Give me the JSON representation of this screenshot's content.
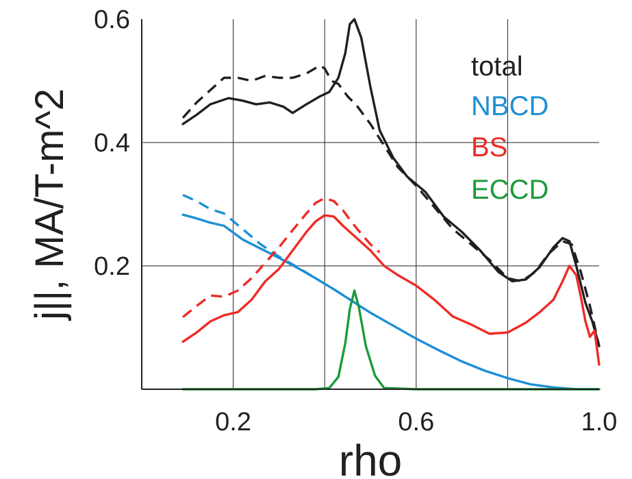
{
  "chart_data": {
    "type": "line",
    "title": "",
    "xlabel": "rho",
    "ylabel": "j||, MA/T-m^2",
    "xlim": [
      0.0,
      1.0
    ],
    "ylim": [
      0.0,
      0.6
    ],
    "xticks": [
      0.2,
      0.6,
      1.0
    ],
    "xtick_labels": [
      "0.2",
      "0.6",
      "1.0"
    ],
    "yticks": [
      0.2,
      0.4,
      0.6
    ],
    "ytick_labels": [
      "0.2",
      "0.4",
      "0.6"
    ],
    "x_gridlines": [
      0.2,
      0.4,
      0.6,
      0.8
    ],
    "y_gridlines": [
      0.2,
      0.4
    ],
    "grid": true,
    "legend_position": "top-right",
    "legend": [
      {
        "label": "total",
        "color": "#231f20"
      },
      {
        "label": "NBCD",
        "color": "#1e8fd5"
      },
      {
        "label": "BS",
        "color": "#ee2a24"
      },
      {
        "label": "ECCD",
        "color": "#1c9a3b"
      }
    ],
    "series": [
      {
        "name": "total",
        "color": "#231f20",
        "style": "solid",
        "x": [
          0.09,
          0.12,
          0.15,
          0.19,
          0.22,
          0.25,
          0.28,
          0.31,
          0.33,
          0.36,
          0.39,
          0.41,
          0.43,
          0.445,
          0.455,
          0.465,
          0.48,
          0.5,
          0.52,
          0.55,
          0.58,
          0.62,
          0.66,
          0.7,
          0.74,
          0.78,
          0.81,
          0.84,
          0.87,
          0.9,
          0.92,
          0.935,
          0.95,
          0.97,
          0.985,
          1.0
        ],
        "y": [
          0.43,
          0.445,
          0.462,
          0.472,
          0.468,
          0.462,
          0.465,
          0.458,
          0.448,
          0.462,
          0.475,
          0.482,
          0.505,
          0.545,
          0.592,
          0.6,
          0.57,
          0.49,
          0.42,
          0.375,
          0.345,
          0.32,
          0.28,
          0.255,
          0.225,
          0.19,
          0.175,
          0.178,
          0.198,
          0.23,
          0.245,
          0.24,
          0.2,
          0.14,
          0.11,
          0.07
        ]
      },
      {
        "name": "total (dashed)",
        "color": "#231f20",
        "style": "dashed",
        "x": [
          0.09,
          0.12,
          0.15,
          0.18,
          0.21,
          0.24,
          0.27,
          0.3,
          0.33,
          0.36,
          0.39,
          0.4,
          0.415,
          0.43,
          0.45,
          0.47,
          0.5,
          0.53,
          0.56,
          0.6,
          0.64,
          0.68,
          0.72,
          0.76,
          0.8,
          0.83,
          0.86,
          0.89,
          0.92,
          0.94,
          0.96,
          0.98,
          1.0
        ],
        "y": [
          0.44,
          0.465,
          0.485,
          0.505,
          0.505,
          0.5,
          0.508,
          0.505,
          0.505,
          0.512,
          0.525,
          0.52,
          0.5,
          0.495,
          0.475,
          0.46,
          0.43,
          0.395,
          0.36,
          0.33,
          0.295,
          0.26,
          0.235,
          0.21,
          0.18,
          0.175,
          0.19,
          0.22,
          0.24,
          0.235,
          0.19,
          0.135,
          0.07
        ]
      },
      {
        "name": "NBCD",
        "color": "#1e8fd5",
        "style": "solid",
        "x": [
          0.09,
          0.12,
          0.15,
          0.18,
          0.22,
          0.26,
          0.3,
          0.34,
          0.38,
          0.42,
          0.46,
          0.5,
          0.55,
          0.6,
          0.65,
          0.7,
          0.75,
          0.8,
          0.85,
          0.9,
          0.95,
          1.0
        ],
        "y": [
          0.283,
          0.277,
          0.27,
          0.265,
          0.243,
          0.228,
          0.213,
          0.197,
          0.18,
          0.162,
          0.143,
          0.124,
          0.103,
          0.082,
          0.063,
          0.045,
          0.03,
          0.018,
          0.008,
          0.003,
          0.0,
          0.0
        ]
      },
      {
        "name": "NBCD (dashed)",
        "color": "#1e8fd5",
        "style": "dashed",
        "x": [
          0.09,
          0.12,
          0.15,
          0.18,
          0.22,
          0.26,
          0.3,
          0.34,
          0.38,
          0.42,
          0.46
        ],
        "y": [
          0.315,
          0.305,
          0.292,
          0.285,
          0.26,
          0.235,
          0.215,
          0.198,
          0.18,
          0.162,
          0.143
        ]
      },
      {
        "name": "BS",
        "color": "#ee2a24",
        "style": "solid",
        "x": [
          0.09,
          0.12,
          0.15,
          0.18,
          0.21,
          0.24,
          0.27,
          0.3,
          0.33,
          0.36,
          0.38,
          0.4,
          0.42,
          0.44,
          0.47,
          0.5,
          0.53,
          0.56,
          0.6,
          0.64,
          0.68,
          0.72,
          0.76,
          0.8,
          0.84,
          0.87,
          0.9,
          0.92,
          0.935,
          0.95,
          0.96,
          0.97,
          0.98,
          0.99,
          1.0
        ],
        "y": [
          0.077,
          0.092,
          0.11,
          0.12,
          0.125,
          0.145,
          0.175,
          0.195,
          0.225,
          0.255,
          0.272,
          0.282,
          0.28,
          0.265,
          0.245,
          0.225,
          0.2,
          0.185,
          0.168,
          0.145,
          0.118,
          0.105,
          0.09,
          0.092,
          0.108,
          0.125,
          0.145,
          0.175,
          0.2,
          0.185,
          0.15,
          0.11,
          0.085,
          0.095,
          0.04
        ]
      },
      {
        "name": "BS (dashed)",
        "color": "#ee2a24",
        "style": "dashed",
        "x": [
          0.09,
          0.12,
          0.15,
          0.18,
          0.21,
          0.24,
          0.27,
          0.3,
          0.33,
          0.36,
          0.38,
          0.4,
          0.42,
          0.44,
          0.46,
          0.48,
          0.5,
          0.52
        ],
        "y": [
          0.117,
          0.135,
          0.152,
          0.15,
          0.16,
          0.18,
          0.205,
          0.23,
          0.258,
          0.285,
          0.302,
          0.31,
          0.305,
          0.29,
          0.27,
          0.252,
          0.235,
          0.222
        ]
      },
      {
        "name": "ECCD",
        "color": "#1c9a3b",
        "style": "solid",
        "x": [
          0.09,
          0.3,
          0.38,
          0.41,
          0.43,
          0.445,
          0.455,
          0.465,
          0.475,
          0.49,
          0.51,
          0.53,
          0.6,
          0.8,
          1.0
        ],
        "y": [
          0.0,
          0.0,
          0.0,
          0.002,
          0.02,
          0.075,
          0.13,
          0.16,
          0.132,
          0.07,
          0.022,
          0.002,
          0.0,
          0.0,
          0.0
        ]
      }
    ]
  }
}
